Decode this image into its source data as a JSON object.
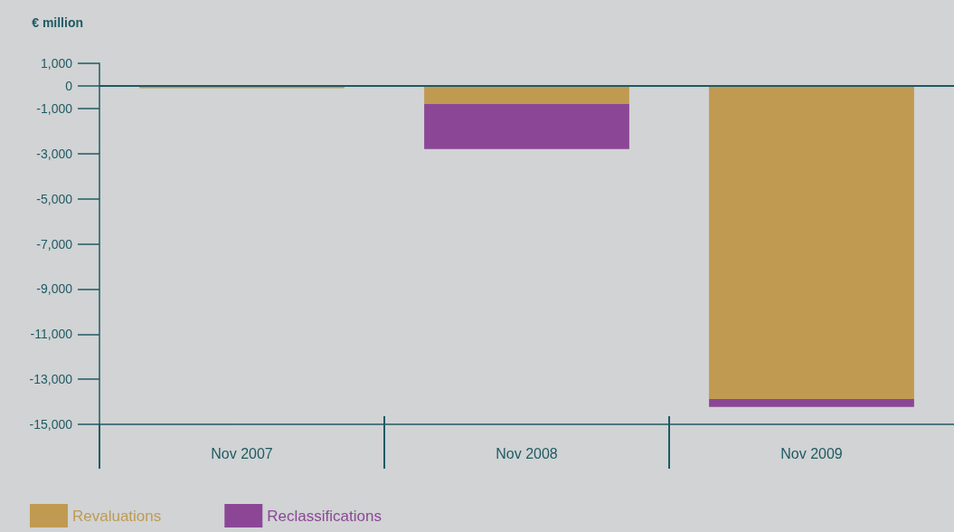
{
  "chart_data": {
    "type": "bar",
    "ylabel": "€ million",
    "stacked": true,
    "categories": [
      "Nov 2007",
      "Nov 2008",
      "Nov 2009"
    ],
    "series": [
      {
        "name": "Revaluations",
        "color": "#c19a51",
        "values": [
          -100,
          -800,
          -13880
        ]
      },
      {
        "name": "Reclassifications",
        "color": "#8b4796",
        "values": [
          0,
          -2000,
          -350
        ]
      }
    ],
    "ylim": [
      -15000,
      1000
    ],
    "yticks": [
      {
        "value": 1000,
        "label": "1,000"
      },
      0,
      {
        "value": -1000,
        "label": "-1,000"
      },
      {
        "value": -3000,
        "label": "-3,000"
      },
      {
        "value": -5000,
        "label": "-5,000"
      },
      {
        "value": -7000,
        "label": "-7,000"
      },
      {
        "value": -9000,
        "label": "-9,000"
      },
      {
        "value": -11000,
        "label": "-11,000"
      },
      {
        "value": -13000,
        "label": "-13,000"
      },
      {
        "value": -15000,
        "label": "-15,000"
      }
    ],
    "ref_lines": [
      {
        "axis": "y",
        "value": 0
      }
    ],
    "grid": false,
    "legend": "bottom left"
  }
}
